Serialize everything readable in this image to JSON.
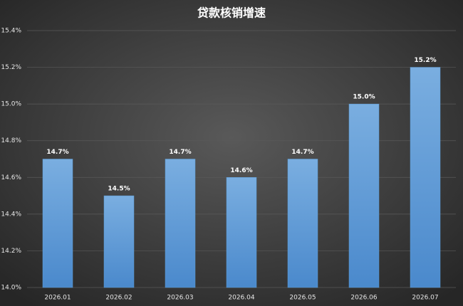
{
  "chart_data": {
    "type": "bar",
    "title": "贷款核销增速",
    "categories": [
      "2026.01",
      "2026.02",
      "2026.03",
      "2026.04",
      "2026.05",
      "2026.06",
      "2026.07"
    ],
    "values": [
      14.7,
      14.5,
      14.7,
      14.6,
      14.7,
      15.0,
      15.2
    ],
    "value_labels": [
      "14.7%",
      "14.5%",
      "14.7%",
      "14.6%",
      "14.7%",
      "15.0%",
      "15.2%"
    ],
    "color": "#5b9bd5",
    "ylim": [
      14.0,
      15.4
    ],
    "yticks": [
      {
        "value": 14.0,
        "label": "14.0%"
      },
      {
        "value": 14.2,
        "label": "14.2%"
      },
      {
        "value": 14.4,
        "label": "14.4%"
      },
      {
        "value": 14.6,
        "label": "14.6%"
      },
      {
        "value": 14.8,
        "label": "14.8%"
      },
      {
        "value": 15.0,
        "label": "15.0%"
      },
      {
        "value": 15.2,
        "label": "15.2%"
      },
      {
        "value": 15.4,
        "label": "15.4%"
      }
    ],
    "grid": true
  }
}
